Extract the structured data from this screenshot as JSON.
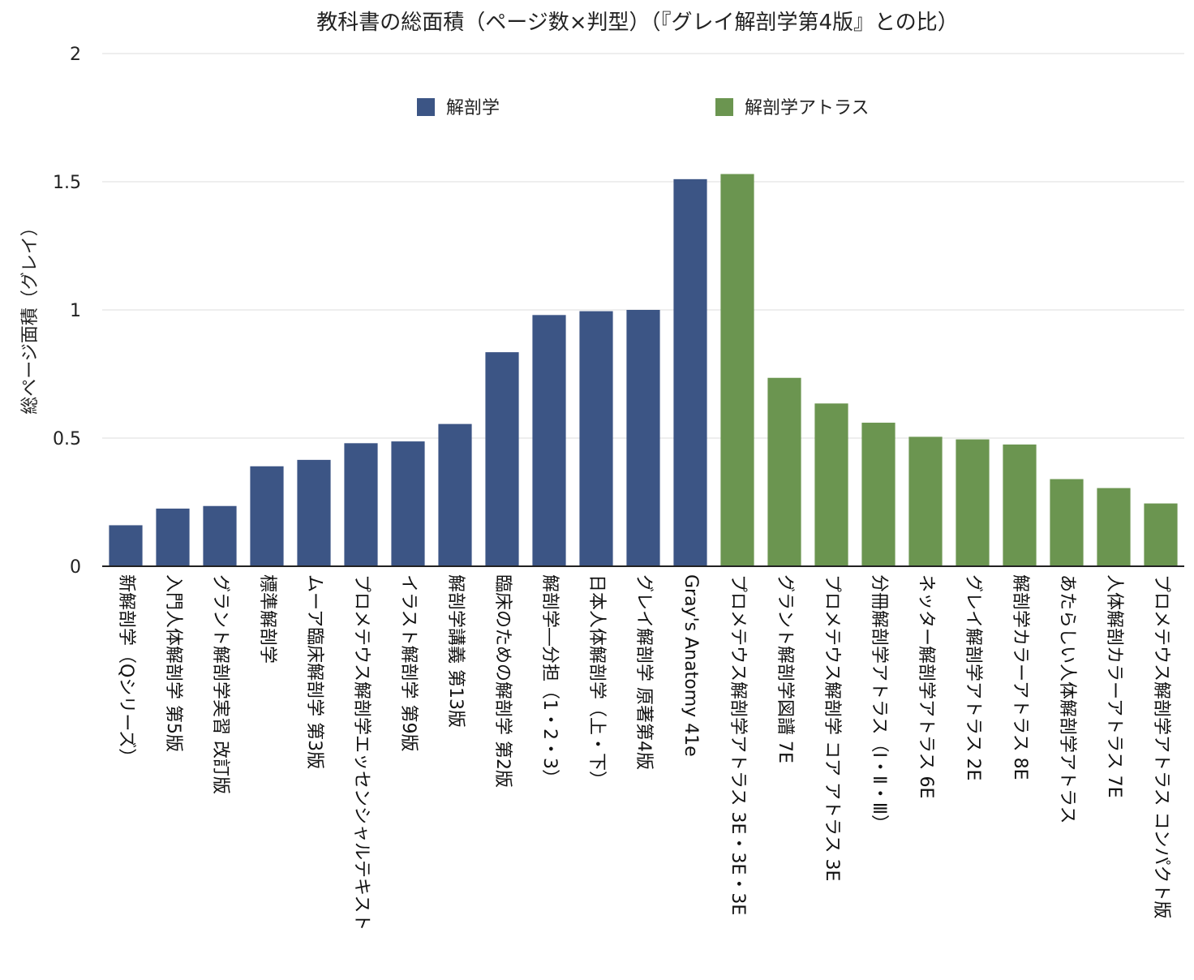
{
  "chart_data": {
    "type": "bar",
    "title": "教科書の総面積（ページ数×判型）（『グレイ解剖学第4版』との比）",
    "ylabel": "総ページ面積（グレイ）",
    "xlabel": "",
    "ylim": [
      0,
      2
    ],
    "yticks": [
      "0",
      "0.5",
      "1",
      "1.5",
      "2"
    ],
    "grid": true,
    "legend_position": "top-center",
    "categories": [
      "新解剖学（Qシリーズ）",
      "入門人体解剖学 第5版",
      "グラント解剖学実習 改訂版",
      "標準解剖学",
      "ムーア臨床解剖学 第3版",
      "プロメテウス解剖学エッセンシャルテキスト",
      "イラスト解剖学 第9版",
      "解剖学講義 第13版",
      "臨床のための解剖学 第2版",
      "解剖学―分担（1・2・3）",
      "日本人体解剖学（上・下）",
      "グレイ解剖学 原著第4版",
      "Gray's Anatomy 41e",
      "プロメテウス解剖学アトラス 3E・3E・3E",
      "グラント解剖学図譜 7E",
      "プロメテウス解剖学 コア アトラス 3E",
      "分冊解剖学アトラス（Ⅰ・Ⅱ・Ⅲ）",
      "ネッター解剖学アトラス 6E",
      "グレイ解剖学アトラス 2E",
      "解剖学カラーアトラス 8E",
      "あたらしい人体解剖学アトラス",
      "人体解剖カラーアトラス 7E",
      "プロメテウス解剖学アトラス コンパクト版"
    ],
    "series": [
      {
        "name": "解剖学",
        "color": "#3c5585",
        "values": [
          0.16,
          0.225,
          0.235,
          0.39,
          0.415,
          0.48,
          0.487,
          0.555,
          0.835,
          0.98,
          0.995,
          1.0,
          1.51,
          null,
          null,
          null,
          null,
          null,
          null,
          null,
          null,
          null,
          null
        ]
      },
      {
        "name": "解剖学アトラス",
        "color": "#6b9550",
        "values": [
          null,
          null,
          null,
          null,
          null,
          null,
          null,
          null,
          null,
          null,
          null,
          null,
          null,
          1.53,
          0.735,
          0.635,
          0.56,
          0.505,
          0.495,
          0.475,
          0.34,
          0.305,
          0.245
        ]
      }
    ]
  }
}
